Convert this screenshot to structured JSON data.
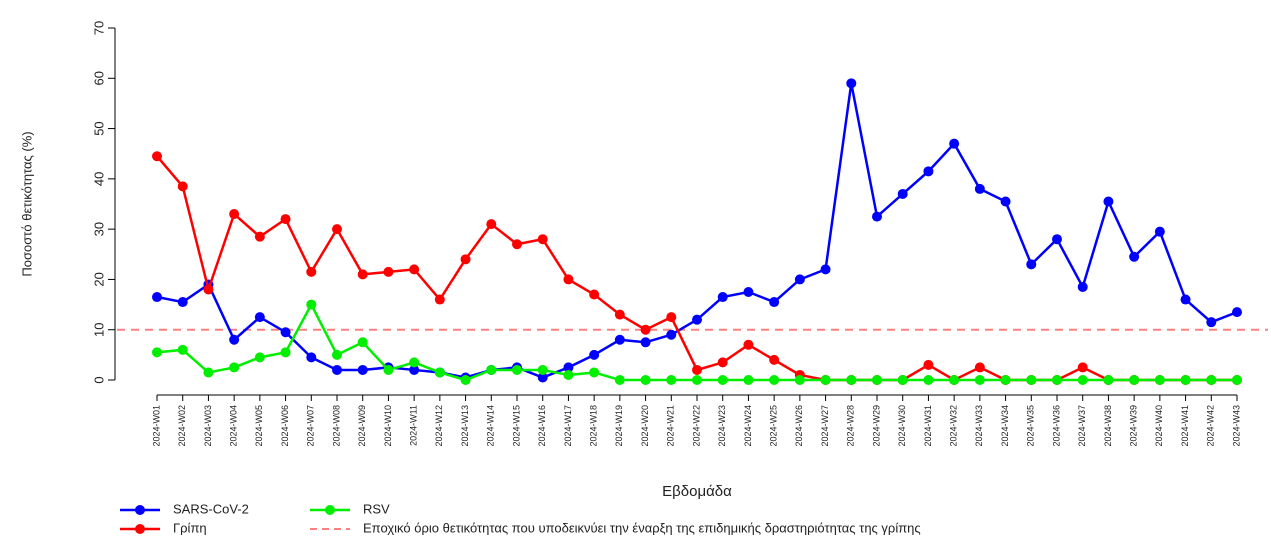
{
  "chart_data": {
    "type": "line",
    "x_label": "Εβδομάδα",
    "y_label": "Ποσοστό θετικότητας (%)",
    "categories": [
      "2024-W01",
      "2024-W02",
      "2024-W03",
      "2024-W04",
      "2024-W05",
      "2024-W06",
      "2024-W07",
      "2024-W08",
      "2024-W09",
      "2024-W10",
      "2024-W11",
      "2024-W12",
      "2024-W13",
      "2024-W14",
      "2024-W15",
      "2024-W16",
      "2024-W17",
      "2024-W18",
      "2024-W19",
      "2024-W20",
      "2024-W21",
      "2024-W22",
      "2024-W23",
      "2024-W24",
      "2024-W25",
      "2024-W26",
      "2024-W27",
      "2024-W28",
      "2024-W29",
      "2024-W30",
      "2024-W31",
      "2024-W32",
      "2024-W33",
      "2024-W34",
      "2024-W35",
      "2024-W36",
      "2024-W37",
      "2024-W38",
      "2024-W39",
      "2024-W40",
      "2024-W41",
      "2024-W42",
      "2024-W43"
    ],
    "series": [
      {
        "name": "SARS-CoV-2",
        "color": "#0000ff",
        "values": [
          16.5,
          15.5,
          19,
          8,
          12.5,
          9.5,
          4.5,
          2,
          2,
          2.5,
          2,
          1.5,
          0.5,
          2,
          2.5,
          0.5,
          2.5,
          5,
          8,
          7.5,
          9,
          12,
          16.5,
          17.5,
          15.5,
          20,
          22,
          59,
          32.5,
          37,
          41.5,
          47,
          38,
          35.5,
          23,
          28,
          18.5,
          35.5,
          24.5,
          29.5,
          16,
          11.5,
          13.5
        ]
      },
      {
        "name": "Γρίπη",
        "color": "#ff0000",
        "values": [
          44.5,
          38.5,
          18,
          33,
          28.5,
          32,
          21.5,
          30,
          21,
          21.5,
          22,
          16,
          24,
          31,
          27,
          28,
          20,
          17,
          13,
          10,
          12.5,
          2,
          3.5,
          7,
          4,
          1,
          0,
          0,
          0,
          0,
          3,
          0,
          2.5,
          0,
          0,
          0,
          2.5,
          0,
          0,
          0,
          0,
          0,
          0
        ]
      },
      {
        "name": "RSV",
        "color": "#00ee00",
        "values": [
          5.5,
          6,
          1.5,
          2.5,
          4.5,
          5.5,
          15,
          5,
          7.5,
          2,
          3.5,
          1.5,
          0,
          2,
          2,
          2,
          1,
          1.5,
          0,
          0,
          0,
          0,
          0,
          0,
          0,
          0,
          0,
          0,
          0,
          0,
          0,
          0,
          0,
          0,
          0,
          0,
          0,
          0,
          0,
          0,
          0,
          0,
          0
        ]
      }
    ],
    "threshold": {
      "name": "Εποχικό όριο θετικότητας που υποδεικνύει την έναρξη της επιδημικής δραστηριότητας της γρίπης",
      "value": 10,
      "color": "#ff8080"
    },
    "ylim": [
      0,
      70
    ],
    "yticks": [
      0,
      10,
      20,
      30,
      40,
      50,
      60,
      70
    ]
  }
}
